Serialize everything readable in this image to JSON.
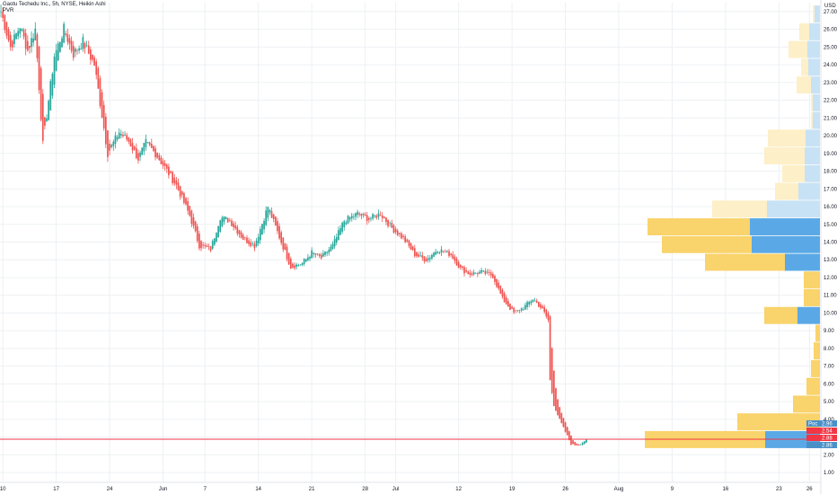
{
  "legend": {
    "title": "Gaotu Techedu Inc., 5h, NYSE, Heikin Ashi",
    "indicator": "PVR"
  },
  "currency_label": "USD",
  "colors": {
    "up": "#26a69a",
    "down": "#ef5350",
    "vp_up_strong": "#5aa9e6",
    "vp_down_strong": "#f9d36b",
    "vp_up_light": "#c8e2f5",
    "vp_down_light": "#fdefc7",
    "price_line": "#f23645",
    "poc_badge": "#4a90c8",
    "grid": "#eef0f3"
  },
  "badges": [
    {
      "label": "Poc",
      "value": "2.96"
    },
    {
      "value": "2.54"
    },
    {
      "value": "2.88"
    },
    {
      "value": "2.86"
    }
  ],
  "chart_data": {
    "type": "candlestick",
    "title": "Gaotu Techedu Inc., 5h, NYSE, Heikin Ashi",
    "y_axis": {
      "side": "right",
      "unit": "USD",
      "range": [
        0.5,
        27.5
      ],
      "ticks": [
        "1.00",
        "2.00",
        "3.00",
        "4.00",
        "5.00",
        "6.00",
        "7.00",
        "8.00",
        "9.00",
        "10.00",
        "11.00",
        "12.00",
        "13.00",
        "14.00",
        "15.00",
        "16.00",
        "17.00",
        "18.00",
        "19.00",
        "20.00",
        "21.00",
        "22.00",
        "23.00",
        "24.00",
        "25.00",
        "26.00",
        "27.00"
      ]
    },
    "x_axis": {
      "ticks": [
        {
          "label": "10",
          "bar": 1
        },
        {
          "label": "17",
          "bar": 29
        },
        {
          "label": "24",
          "bar": 57
        },
        {
          "label": "Jun",
          "bar": 85
        },
        {
          "label": "7",
          "bar": 107
        },
        {
          "label": "14",
          "bar": 135
        },
        {
          "label": "21",
          "bar": 163
        },
        {
          "label": "28",
          "bar": 191
        },
        {
          "label": "Jul",
          "bar": 207
        },
        {
          "label": "12",
          "bar": 240
        },
        {
          "label": "19",
          "bar": 268
        },
        {
          "label": "26",
          "bar": 296
        },
        {
          "label": "Aug",
          "bar": 324
        },
        {
          "label": "9",
          "bar": 352
        },
        {
          "label": "16",
          "bar": 380
        },
        {
          "label": "23",
          "bar": 408
        },
        {
          "label": "26",
          "bar": 424
        }
      ],
      "total_bars": 430
    },
    "price_line": 2.88,
    "poc": 2.96,
    "anchors": [
      [
        0,
        27.0
      ],
      [
        5,
        25.0
      ],
      [
        10,
        26.2
      ],
      [
        14,
        24.8
      ],
      [
        18,
        26.0
      ],
      [
        22,
        19.5
      ],
      [
        28,
        24.5
      ],
      [
        33,
        26.0
      ],
      [
        38,
        24.6
      ],
      [
        43,
        25.3
      ],
      [
        49,
        24.0
      ],
      [
        56,
        19.0
      ],
      [
        62,
        20.2
      ],
      [
        67,
        19.7
      ],
      [
        72,
        18.7
      ],
      [
        76,
        19.6
      ],
      [
        81,
        19.0
      ],
      [
        86,
        18.2
      ],
      [
        92,
        17.2
      ],
      [
        99,
        15.5
      ],
      [
        104,
        13.8
      ],
      [
        110,
        13.6
      ],
      [
        115,
        15.4
      ],
      [
        120,
        15.2
      ],
      [
        127,
        14.2
      ],
      [
        133,
        13.8
      ],
      [
        140,
        16.0
      ],
      [
        147,
        14.0
      ],
      [
        152,
        12.6
      ],
      [
        158,
        12.8
      ],
      [
        163,
        13.4
      ],
      [
        168,
        13.1
      ],
      [
        174,
        13.8
      ],
      [
        180,
        15.2
      ],
      [
        187,
        15.6
      ],
      [
        193,
        15.3
      ],
      [
        199,
        15.6
      ],
      [
        205,
        14.8
      ],
      [
        211,
        14.2
      ],
      [
        217,
        13.3
      ],
      [
        223,
        13.0
      ],
      [
        229,
        13.6
      ],
      [
        236,
        13.3
      ],
      [
        241,
        12.5
      ],
      [
        246,
        12.2
      ],
      [
        252,
        12.3
      ],
      [
        258,
        12.1
      ],
      [
        263,
        10.8
      ],
      [
        269,
        10.0
      ],
      [
        274,
        10.3
      ],
      [
        279,
        10.8
      ],
      [
        284,
        10.2
      ],
      [
        287,
        9.6
      ],
      [
        288,
        6.2
      ],
      [
        290,
        4.8
      ],
      [
        293,
        4.0
      ],
      [
        296,
        3.3
      ],
      [
        299,
        2.6
      ],
      [
        303,
        2.55
      ],
      [
        307,
        2.85
      ]
    ],
    "volume_profile": [
      {
        "price": 2.86,
        "up": 61,
        "down": 134,
        "light": false
      },
      {
        "price": 3.86,
        "up": 0,
        "down": 92,
        "light": false
      },
      {
        "price": 4.86,
        "up": 0,
        "down": 30,
        "light": false
      },
      {
        "price": 5.86,
        "up": 0,
        "down": 15,
        "light": false
      },
      {
        "price": 6.86,
        "up": 0,
        "down": 10,
        "light": false
      },
      {
        "price": 7.86,
        "up": 0,
        "down": 7,
        "light": false
      },
      {
        "price": 8.86,
        "up": 0,
        "down": 5,
        "light": false
      },
      {
        "price": 9.86,
        "up": 25,
        "down": 37,
        "light": false
      },
      {
        "price": 10.86,
        "up": 0,
        "down": 18,
        "light": false
      },
      {
        "price": 11.86,
        "up": 0,
        "down": 18,
        "light": false
      },
      {
        "price": 12.86,
        "up": 39,
        "down": 89,
        "light": false
      },
      {
        "price": 13.86,
        "up": 76,
        "down": 100,
        "light": false
      },
      {
        "price": 14.86,
        "up": 78,
        "down": 114,
        "light": false
      },
      {
        "price": 15.86,
        "up": 59,
        "down": 61,
        "light": true
      },
      {
        "price": 16.86,
        "up": 24,
        "down": 26,
        "light": true
      },
      {
        "price": 17.86,
        "up": 17,
        "down": 25,
        "light": true
      },
      {
        "price": 18.86,
        "up": 17,
        "down": 45,
        "light": true
      },
      {
        "price": 19.86,
        "up": 16,
        "down": 42,
        "light": true
      },
      {
        "price": 20.86,
        "up": 8,
        "down": 2,
        "light": true
      },
      {
        "price": 21.86,
        "up": 8,
        "down": 2,
        "light": true
      },
      {
        "price": 22.86,
        "up": 10,
        "down": 16,
        "light": true
      },
      {
        "price": 23.86,
        "up": 13,
        "down": 8,
        "light": true
      },
      {
        "price": 24.86,
        "up": 14,
        "down": 21,
        "light": true
      },
      {
        "price": 25.86,
        "up": 12,
        "down": 11,
        "light": true
      },
      {
        "price": 26.86,
        "up": 6,
        "down": 2,
        "light": true
      }
    ]
  }
}
